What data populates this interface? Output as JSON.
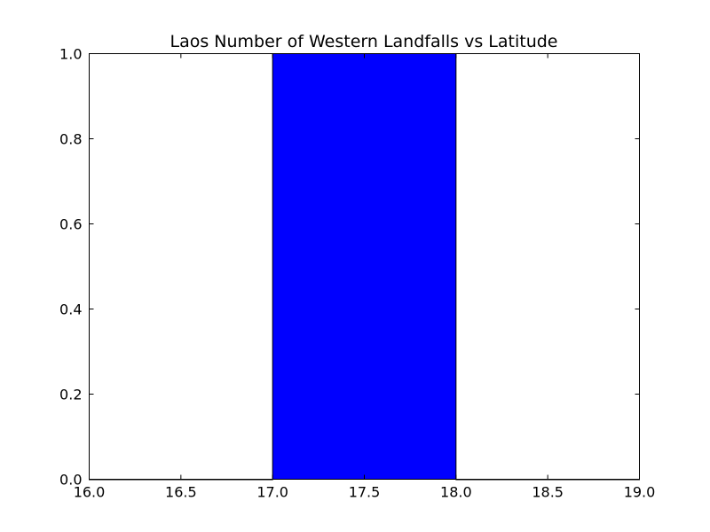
{
  "chart_data": {
    "type": "bar",
    "title": "Laos Number of Western Landfalls vs Latitude",
    "xlabel": "",
    "ylabel": "",
    "xlim": [
      16.0,
      19.0
    ],
    "ylim": [
      0.0,
      1.0
    ],
    "x_ticks": [
      "16.0",
      "16.5",
      "17.0",
      "17.5",
      "18.0",
      "18.5",
      "19.0"
    ],
    "y_ticks": [
      "0.0",
      "0.2",
      "0.4",
      "0.6",
      "0.8",
      "1.0"
    ],
    "bins": [
      {
        "start": 16.0,
        "end": 17.0,
        "value": 0
      },
      {
        "start": 17.0,
        "end": 18.0,
        "value": 1
      },
      {
        "start": 18.0,
        "end": 19.0,
        "value": 0
      }
    ],
    "bar_color": "#0000ff",
    "grid": false,
    "legend": false
  }
}
